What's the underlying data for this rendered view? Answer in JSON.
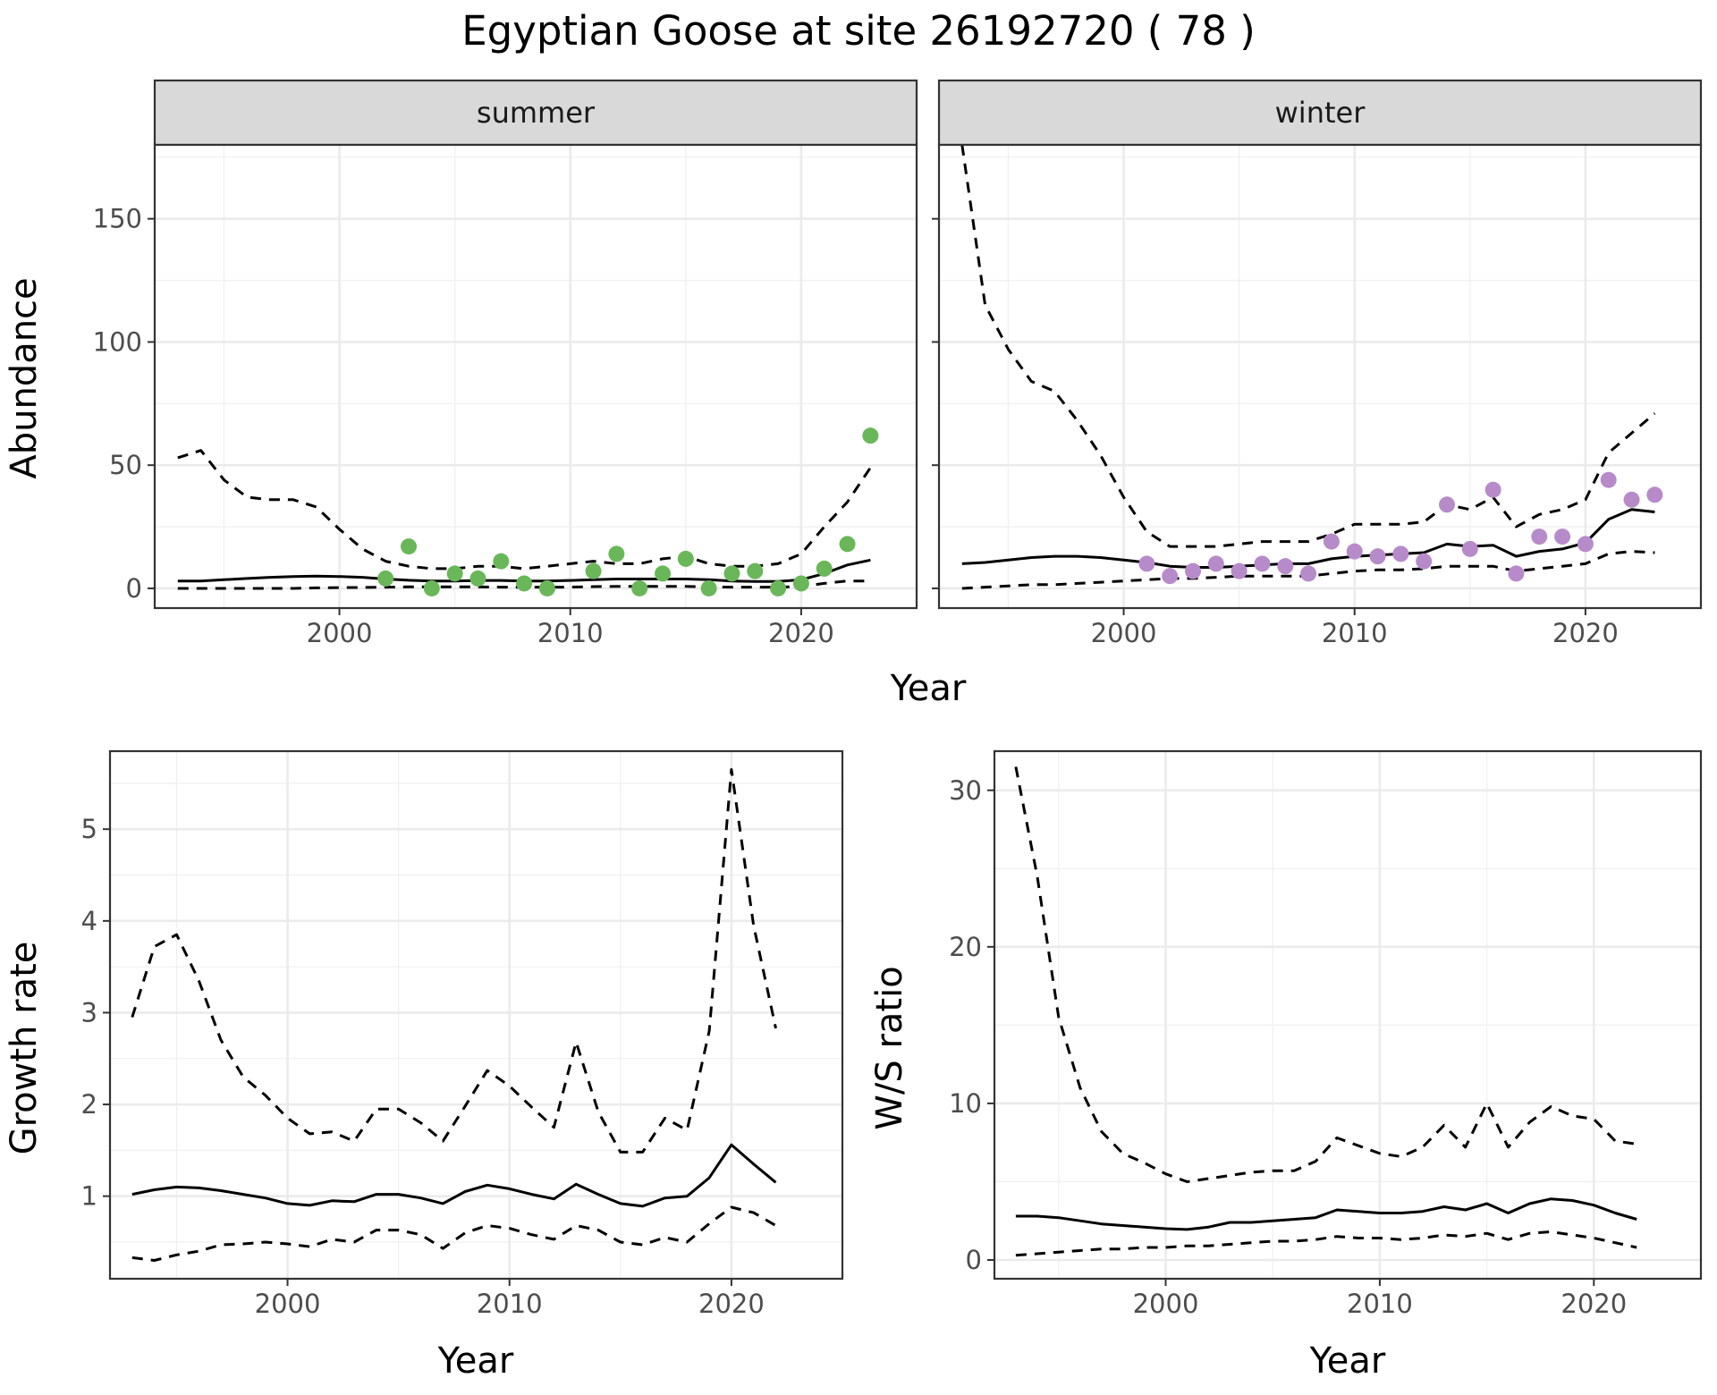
{
  "title": "Egyptian Goose at site 26192720 ( 78 )",
  "colors": {
    "summer_points": "#6ab759",
    "winter_points": "#b78bc9",
    "line": "#000000",
    "strip_fill": "#d9d9d9"
  },
  "chart_data": [
    {
      "type": "line",
      "facet": "summer",
      "xlabel": "Year",
      "ylabel": "Abundance",
      "xlim": [
        1992,
        2025
      ],
      "ylim": [
        -8,
        180
      ],
      "xticks": [
        2000,
        2010,
        2020
      ],
      "yticks": [
        0,
        50,
        100,
        150
      ],
      "grid": true,
      "series": [
        {
          "style": "solid",
          "x": [
            1993,
            1994,
            1995,
            1996,
            1997,
            1998,
            1999,
            2000,
            2001,
            2002,
            2003,
            2004,
            2005,
            2006,
            2007,
            2008,
            2009,
            2010,
            2011,
            2012,
            2013,
            2014,
            2015,
            2016,
            2017,
            2018,
            2019,
            2020,
            2021,
            2022,
            2023
          ],
          "values": [
            3,
            3,
            3.5,
            4,
            4.5,
            4.8,
            5,
            4.8,
            4.5,
            3.8,
            3.3,
            3,
            3,
            3.2,
            3.2,
            3,
            3,
            3.2,
            3.5,
            3.8,
            3.8,
            3.8,
            3.8,
            3.5,
            3,
            2.8,
            2.8,
            3.5,
            6,
            9.5,
            11.5
          ]
        },
        {
          "style": "dashed",
          "x": [
            1993,
            1994,
            1995,
            1996,
            1997,
            1998,
            1999,
            2000,
            2001,
            2002,
            2003,
            2004,
            2005,
            2006,
            2007,
            2008,
            2009,
            2010,
            2011,
            2012,
            2013,
            2014,
            2015,
            2016,
            2017,
            2018,
            2019,
            2020,
            2021,
            2022,
            2023
          ],
          "values": [
            53,
            56,
            44,
            37,
            36,
            36,
            33,
            24,
            16,
            11,
            9,
            8,
            8,
            9,
            9,
            8,
            9,
            10,
            11,
            10,
            10,
            12,
            13,
            10,
            9,
            9,
            10,
            14,
            25,
            35,
            49
          ]
        },
        {
          "style": "dashed",
          "x": [
            1993,
            1994,
            1995,
            1996,
            1997,
            1998,
            1999,
            2000,
            2001,
            2002,
            2003,
            2004,
            2005,
            2006,
            2007,
            2008,
            2009,
            2010,
            2011,
            2012,
            2013,
            2014,
            2015,
            2016,
            2017,
            2018,
            2019,
            2020,
            2021,
            2022,
            2023
          ],
          "values": [
            0,
            0,
            0,
            0,
            0,
            0,
            0.2,
            0.3,
            0.4,
            0.5,
            0.6,
            0.6,
            0.6,
            0.6,
            0.5,
            0.5,
            0.5,
            0.5,
            0.7,
            0.8,
            0.8,
            0.8,
            0.8,
            0.6,
            0.5,
            0.5,
            0.5,
            0.8,
            2,
            3,
            3
          ]
        },
        {
          "style": "points",
          "x": [
            2002,
            2003,
            2004,
            2005,
            2006,
            2007,
            2008,
            2009,
            2011,
            2012,
            2013,
            2014,
            2015,
            2016,
            2017,
            2018,
            2019,
            2020,
            2021,
            2022,
            2023
          ],
          "values": [
            4,
            17,
            0,
            6,
            4,
            11,
            2,
            0,
            7,
            14,
            0,
            6,
            12,
            0,
            6,
            7,
            0,
            2,
            8,
            18,
            62
          ]
        }
      ]
    },
    {
      "type": "line",
      "facet": "winter",
      "xlabel": "Year",
      "ylabel": "Abundance",
      "xlim": [
        1992,
        2025
      ],
      "ylim": [
        -8,
        180
      ],
      "xticks": [
        2000,
        2010,
        2020
      ],
      "yticks": [
        0,
        50,
        100,
        150
      ],
      "grid": true,
      "series": [
        {
          "style": "solid",
          "x": [
            1993,
            1994,
            1995,
            1996,
            1997,
            1998,
            1999,
            2000,
            2001,
            2002,
            2003,
            2004,
            2005,
            2006,
            2007,
            2008,
            2009,
            2010,
            2011,
            2012,
            2013,
            2014,
            2015,
            2016,
            2017,
            2018,
            2019,
            2020,
            2021,
            2022,
            2023
          ],
          "values": [
            10,
            10.5,
            11.5,
            12.5,
            13,
            13,
            12.5,
            11.5,
            10.5,
            9,
            8.5,
            8.5,
            9,
            9.5,
            10,
            10,
            12,
            13,
            13.5,
            14,
            14.5,
            18,
            17,
            17.5,
            13,
            15,
            16,
            18.5,
            28,
            32,
            31
          ]
        },
        {
          "style": "dashed",
          "x": [
            1993,
            1994,
            1995,
            1996,
            1997,
            1998,
            1999,
            2000,
            2001,
            2002,
            2003,
            2004,
            2005,
            2006,
            2007,
            2008,
            2009,
            2010,
            2011,
            2012,
            2013,
            2014,
            2015,
            2016,
            2017,
            2018,
            2019,
            2020,
            2021,
            2022,
            2023
          ],
          "values": [
            180,
            115,
            97,
            84,
            80,
            68,
            54,
            37,
            23,
            17,
            17,
            17,
            18,
            19,
            19,
            19,
            22,
            26,
            26,
            26,
            27,
            34,
            32,
            37,
            25,
            30,
            32,
            36,
            55,
            63,
            71
          ]
        },
        {
          "style": "dashed",
          "x": [
            1993,
            1994,
            1995,
            1996,
            1997,
            1998,
            1999,
            2000,
            2001,
            2002,
            2003,
            2004,
            2005,
            2006,
            2007,
            2008,
            2009,
            2010,
            2011,
            2012,
            2013,
            2014,
            2015,
            2016,
            2017,
            2018,
            2019,
            2020,
            2021,
            2022,
            2023
          ],
          "values": [
            0,
            0.5,
            1,
            1.5,
            1.5,
            2,
            2.5,
            3,
            3.5,
            4,
            4,
            4.5,
            5,
            5,
            5,
            5,
            6,
            7,
            7.5,
            7.5,
            8,
            9,
            9,
            9,
            7,
            8,
            9,
            10,
            14,
            15,
            14.5
          ]
        },
        {
          "style": "points",
          "x": [
            2001,
            2002,
            2003,
            2004,
            2005,
            2006,
            2007,
            2008,
            2009,
            2010,
            2011,
            2012,
            2013,
            2014,
            2015,
            2016,
            2017,
            2018,
            2019,
            2020,
            2021,
            2022,
            2023
          ],
          "values": [
            10,
            5,
            7,
            10,
            7,
            10,
            9,
            6,
            19,
            15,
            13,
            14,
            11,
            34,
            16,
            40,
            6,
            21,
            21,
            18,
            44,
            36,
            38
          ]
        }
      ]
    },
    {
      "type": "line",
      "xlabel": "Year",
      "ylabel": "Growth rate",
      "xlim": [
        1992,
        2025
      ],
      "ylim": [
        0.1,
        5.85
      ],
      "xticks": [
        2000,
        2010,
        2020
      ],
      "yticks": [
        1,
        2,
        3,
        4,
        5
      ],
      "grid": true,
      "series": [
        {
          "style": "solid",
          "x": [
            1993,
            1994,
            1995,
            1996,
            1997,
            1998,
            1999,
            2000,
            2001,
            2002,
            2003,
            2004,
            2005,
            2006,
            2007,
            2008,
            2009,
            2010,
            2011,
            2012,
            2013,
            2014,
            2015,
            2016,
            2017,
            2018,
            2019,
            2020,
            2021,
            2022
          ],
          "values": [
            1.02,
            1.07,
            1.1,
            1.09,
            1.06,
            1.02,
            0.98,
            0.92,
            0.9,
            0.95,
            0.94,
            1.02,
            1.02,
            0.98,
            0.92,
            1.05,
            1.12,
            1.08,
            1.02,
            0.97,
            1.13,
            1.02,
            0.92,
            0.89,
            0.98,
            1,
            1.2,
            1.56,
            1.35,
            1.15
          ]
        },
        {
          "style": "dashed",
          "x": [
            1993,
            1994,
            1995,
            1996,
            1997,
            1998,
            1999,
            2000,
            2001,
            2002,
            2003,
            2004,
            2005,
            2006,
            2007,
            2008,
            2009,
            2010,
            2011,
            2012,
            2013,
            2014,
            2015,
            2016,
            2017,
            2018,
            2019,
            2020,
            2021,
            2022
          ],
          "values": [
            2.95,
            3.72,
            3.85,
            3.35,
            2.7,
            2.3,
            2.1,
            1.85,
            1.68,
            1.7,
            1.6,
            1.95,
            1.95,
            1.8,
            1.6,
            1.98,
            2.37,
            2.2,
            1.97,
            1.75,
            2.68,
            1.92,
            1.48,
            1.48,
            1.85,
            1.72,
            2.8,
            5.65,
            3.95,
            2.83
          ]
        },
        {
          "style": "dashed",
          "x": [
            1993,
            1994,
            1995,
            1996,
            1997,
            1998,
            1999,
            2000,
            2001,
            2002,
            2003,
            2004,
            2005,
            2006,
            2007,
            2008,
            2009,
            2010,
            2011,
            2012,
            2013,
            2014,
            2015,
            2016,
            2017,
            2018,
            2019,
            2020,
            2021,
            2022
          ],
          "values": [
            0.33,
            0.3,
            0.36,
            0.4,
            0.47,
            0.48,
            0.5,
            0.48,
            0.45,
            0.53,
            0.5,
            0.63,
            0.63,
            0.58,
            0.43,
            0.6,
            0.68,
            0.65,
            0.58,
            0.53,
            0.68,
            0.63,
            0.5,
            0.47,
            0.55,
            0.5,
            0.7,
            0.88,
            0.82,
            0.68
          ]
        }
      ]
    },
    {
      "type": "line",
      "xlabel": "Year",
      "ylabel": "W/S ratio",
      "xlim": [
        1992,
        2025
      ],
      "ylim": [
        -1.2,
        32.5
      ],
      "xticks": [
        2000,
        2010,
        2020
      ],
      "yticks": [
        0,
        10,
        20,
        30
      ],
      "grid": true,
      "series": [
        {
          "style": "solid",
          "x": [
            1993,
            1994,
            1995,
            1996,
            1997,
            1998,
            1999,
            2000,
            2001,
            2002,
            2003,
            2004,
            2005,
            2006,
            2007,
            2008,
            2009,
            2010,
            2011,
            2012,
            2013,
            2014,
            2015,
            2016,
            2017,
            2018,
            2019,
            2020,
            2021,
            2022
          ],
          "values": [
            2.8,
            2.8,
            2.7,
            2.5,
            2.3,
            2.2,
            2.1,
            2,
            1.95,
            2.1,
            2.4,
            2.4,
            2.5,
            2.6,
            2.7,
            3.2,
            3.1,
            3,
            3,
            3.1,
            3.4,
            3.2,
            3.6,
            3,
            3.6,
            3.9,
            3.8,
            3.5,
            3,
            2.6
          ]
        },
        {
          "style": "dashed",
          "x": [
            1993,
            1994,
            1995,
            1996,
            1997,
            1998,
            1999,
            2000,
            2001,
            2002,
            2003,
            2004,
            2005,
            2006,
            2007,
            2008,
            2009,
            2010,
            2011,
            2012,
            2013,
            2014,
            2015,
            2016,
            2017,
            2018,
            2019,
            2020,
            2021,
            2022
          ],
          "values": [
            31.5,
            24.5,
            15.5,
            11,
            8.2,
            6.8,
            6.2,
            5.5,
            5,
            5.2,
            5.4,
            5.6,
            5.7,
            5.7,
            6.3,
            7.8,
            7.3,
            6.8,
            6.6,
            7.2,
            8.6,
            7.2,
            10,
            7.2,
            8.8,
            9.8,
            9.2,
            9,
            7.6,
            7.4
          ]
        },
        {
          "style": "dashed",
          "x": [
            1993,
            1994,
            1995,
            1996,
            1997,
            1998,
            1999,
            2000,
            2001,
            2002,
            2003,
            2004,
            2005,
            2006,
            2007,
            2008,
            2009,
            2010,
            2011,
            2012,
            2013,
            2014,
            2015,
            2016,
            2017,
            2018,
            2019,
            2020,
            2021,
            2022
          ],
          "values": [
            0.3,
            0.4,
            0.5,
            0.6,
            0.7,
            0.7,
            0.8,
            0.8,
            0.9,
            0.9,
            1,
            1.1,
            1.2,
            1.2,
            1.3,
            1.5,
            1.4,
            1.4,
            1.3,
            1.4,
            1.6,
            1.5,
            1.7,
            1.3,
            1.7,
            1.8,
            1.6,
            1.4,
            1.1,
            0.8
          ]
        }
      ]
    }
  ]
}
